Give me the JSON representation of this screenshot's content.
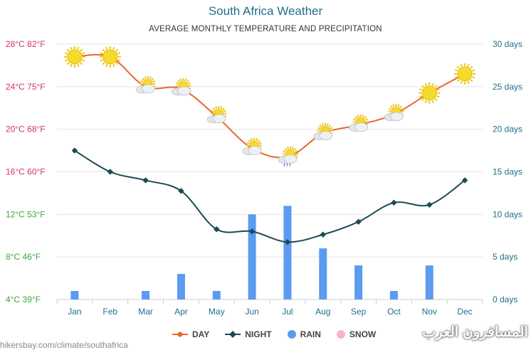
{
  "title": "South Africa Weather",
  "subtitle": "AVERAGE MONTHLY TEMPERATURE AND PRECIPITATION",
  "watermark": "hikersbay.com/climate/southafrica",
  "logo_text": "المسافرون العرب",
  "colors": {
    "day": "#e8662a",
    "night": "#1d4a52",
    "rain": "#5b9bf0",
    "snow": "#f3b6c6",
    "left_axis": "#3aa83a",
    "left_axis_top": "#d12e75",
    "right_axis": "#1f6e8c",
    "sun": "#f4dc2a"
  },
  "chart_data": {
    "type": "line",
    "categories": [
      "Jan",
      "Feb",
      "Mar",
      "Apr",
      "May",
      "Jun",
      "Jul",
      "Aug",
      "Sep",
      "Oct",
      "Nov",
      "Dec"
    ],
    "series": [
      {
        "name": "DAY",
        "type": "line",
        "axis": "temperature",
        "values": [
          26.8,
          26.8,
          24.0,
          23.8,
          21.2,
          18.2,
          17.4,
          19.6,
          20.4,
          21.4,
          23.4,
          25.2
        ]
      },
      {
        "name": "NIGHT",
        "type": "line",
        "axis": "temperature",
        "values": [
          18.0,
          16.0,
          15.2,
          14.2,
          10.6,
          10.4,
          9.4,
          10.1,
          11.3,
          13.1,
          12.9,
          15.2
        ]
      },
      {
        "name": "RAIN",
        "type": "bar",
        "axis": "days",
        "values": [
          1,
          0,
          1,
          3,
          1,
          10,
          11,
          6,
          4,
          1,
          4,
          0
        ]
      },
      {
        "name": "SNOW",
        "type": "bar",
        "axis": "days",
        "values": [
          0,
          0,
          0,
          0,
          0,
          0,
          0,
          0,
          0,
          0,
          0,
          0
        ]
      }
    ],
    "weather_icons": [
      "sun",
      "sun",
      "partly-cloudy",
      "partly-cloudy",
      "partly-cloudy",
      "partly-cloudy",
      "cloud-rain",
      "partly-cloudy",
      "partly-cloudy",
      "partly-cloudy",
      "sun",
      "sun"
    ],
    "left_axis": {
      "range": [
        4,
        28
      ],
      "ticks": [
        28,
        24,
        20,
        16,
        12,
        8,
        4
      ],
      "labels": [
        "28°C 82°F",
        "24°C 75°F",
        "20°C 68°F",
        "16°C 60°F",
        "12°C 53°F",
        "8°C 46°F",
        "4°C 39°F"
      ]
    },
    "right_axis": {
      "range": [
        0,
        30
      ],
      "ticks": [
        30,
        25,
        20,
        15,
        10,
        5,
        0
      ],
      "labels": [
        "30 days",
        "25 days",
        "20 days",
        "15 days",
        "10 days",
        "5 days",
        "0 days"
      ]
    },
    "grid": true,
    "legend_position": "bottom",
    "legend": [
      "DAY",
      "NIGHT",
      "RAIN",
      "SNOW"
    ]
  }
}
